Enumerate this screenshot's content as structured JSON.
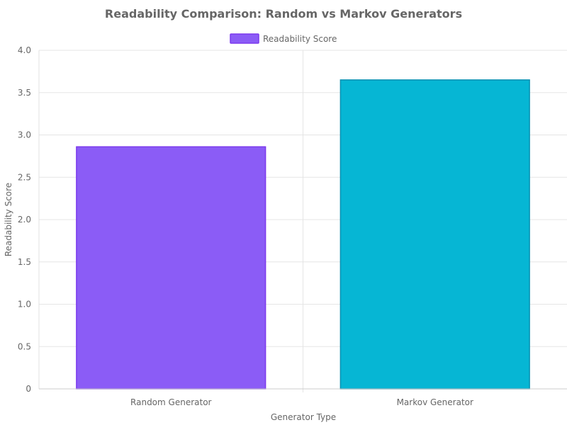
{
  "chart_data": {
    "type": "bar",
    "title": "Readability Comparison: Random vs Markov Generators",
    "xlabel": "Generator Type",
    "ylabel": "Readability Score",
    "categories": [
      "Random Generator",
      "Markov Generator"
    ],
    "series": [
      {
        "name": "Readability Score",
        "values": [
          2.86,
          3.65
        ]
      }
    ],
    "ylim": [
      0,
      4.0
    ],
    "yticks": [
      "0",
      "0.5",
      "1.0",
      "1.5",
      "2.0",
      "2.5",
      "3.0",
      "3.5",
      "4.0"
    ],
    "grid": true,
    "legend_position": "top-center",
    "colors": {
      "bars": [
        "#8b5cf6",
        "#06b6d4"
      ],
      "bar_borders": [
        "#7c3aed",
        "#0891b2"
      ],
      "legend_fill": "#8b5cf6",
      "legend_border": "#7c3aed",
      "grid": "#e5e5e5",
      "text": "#666666"
    }
  }
}
